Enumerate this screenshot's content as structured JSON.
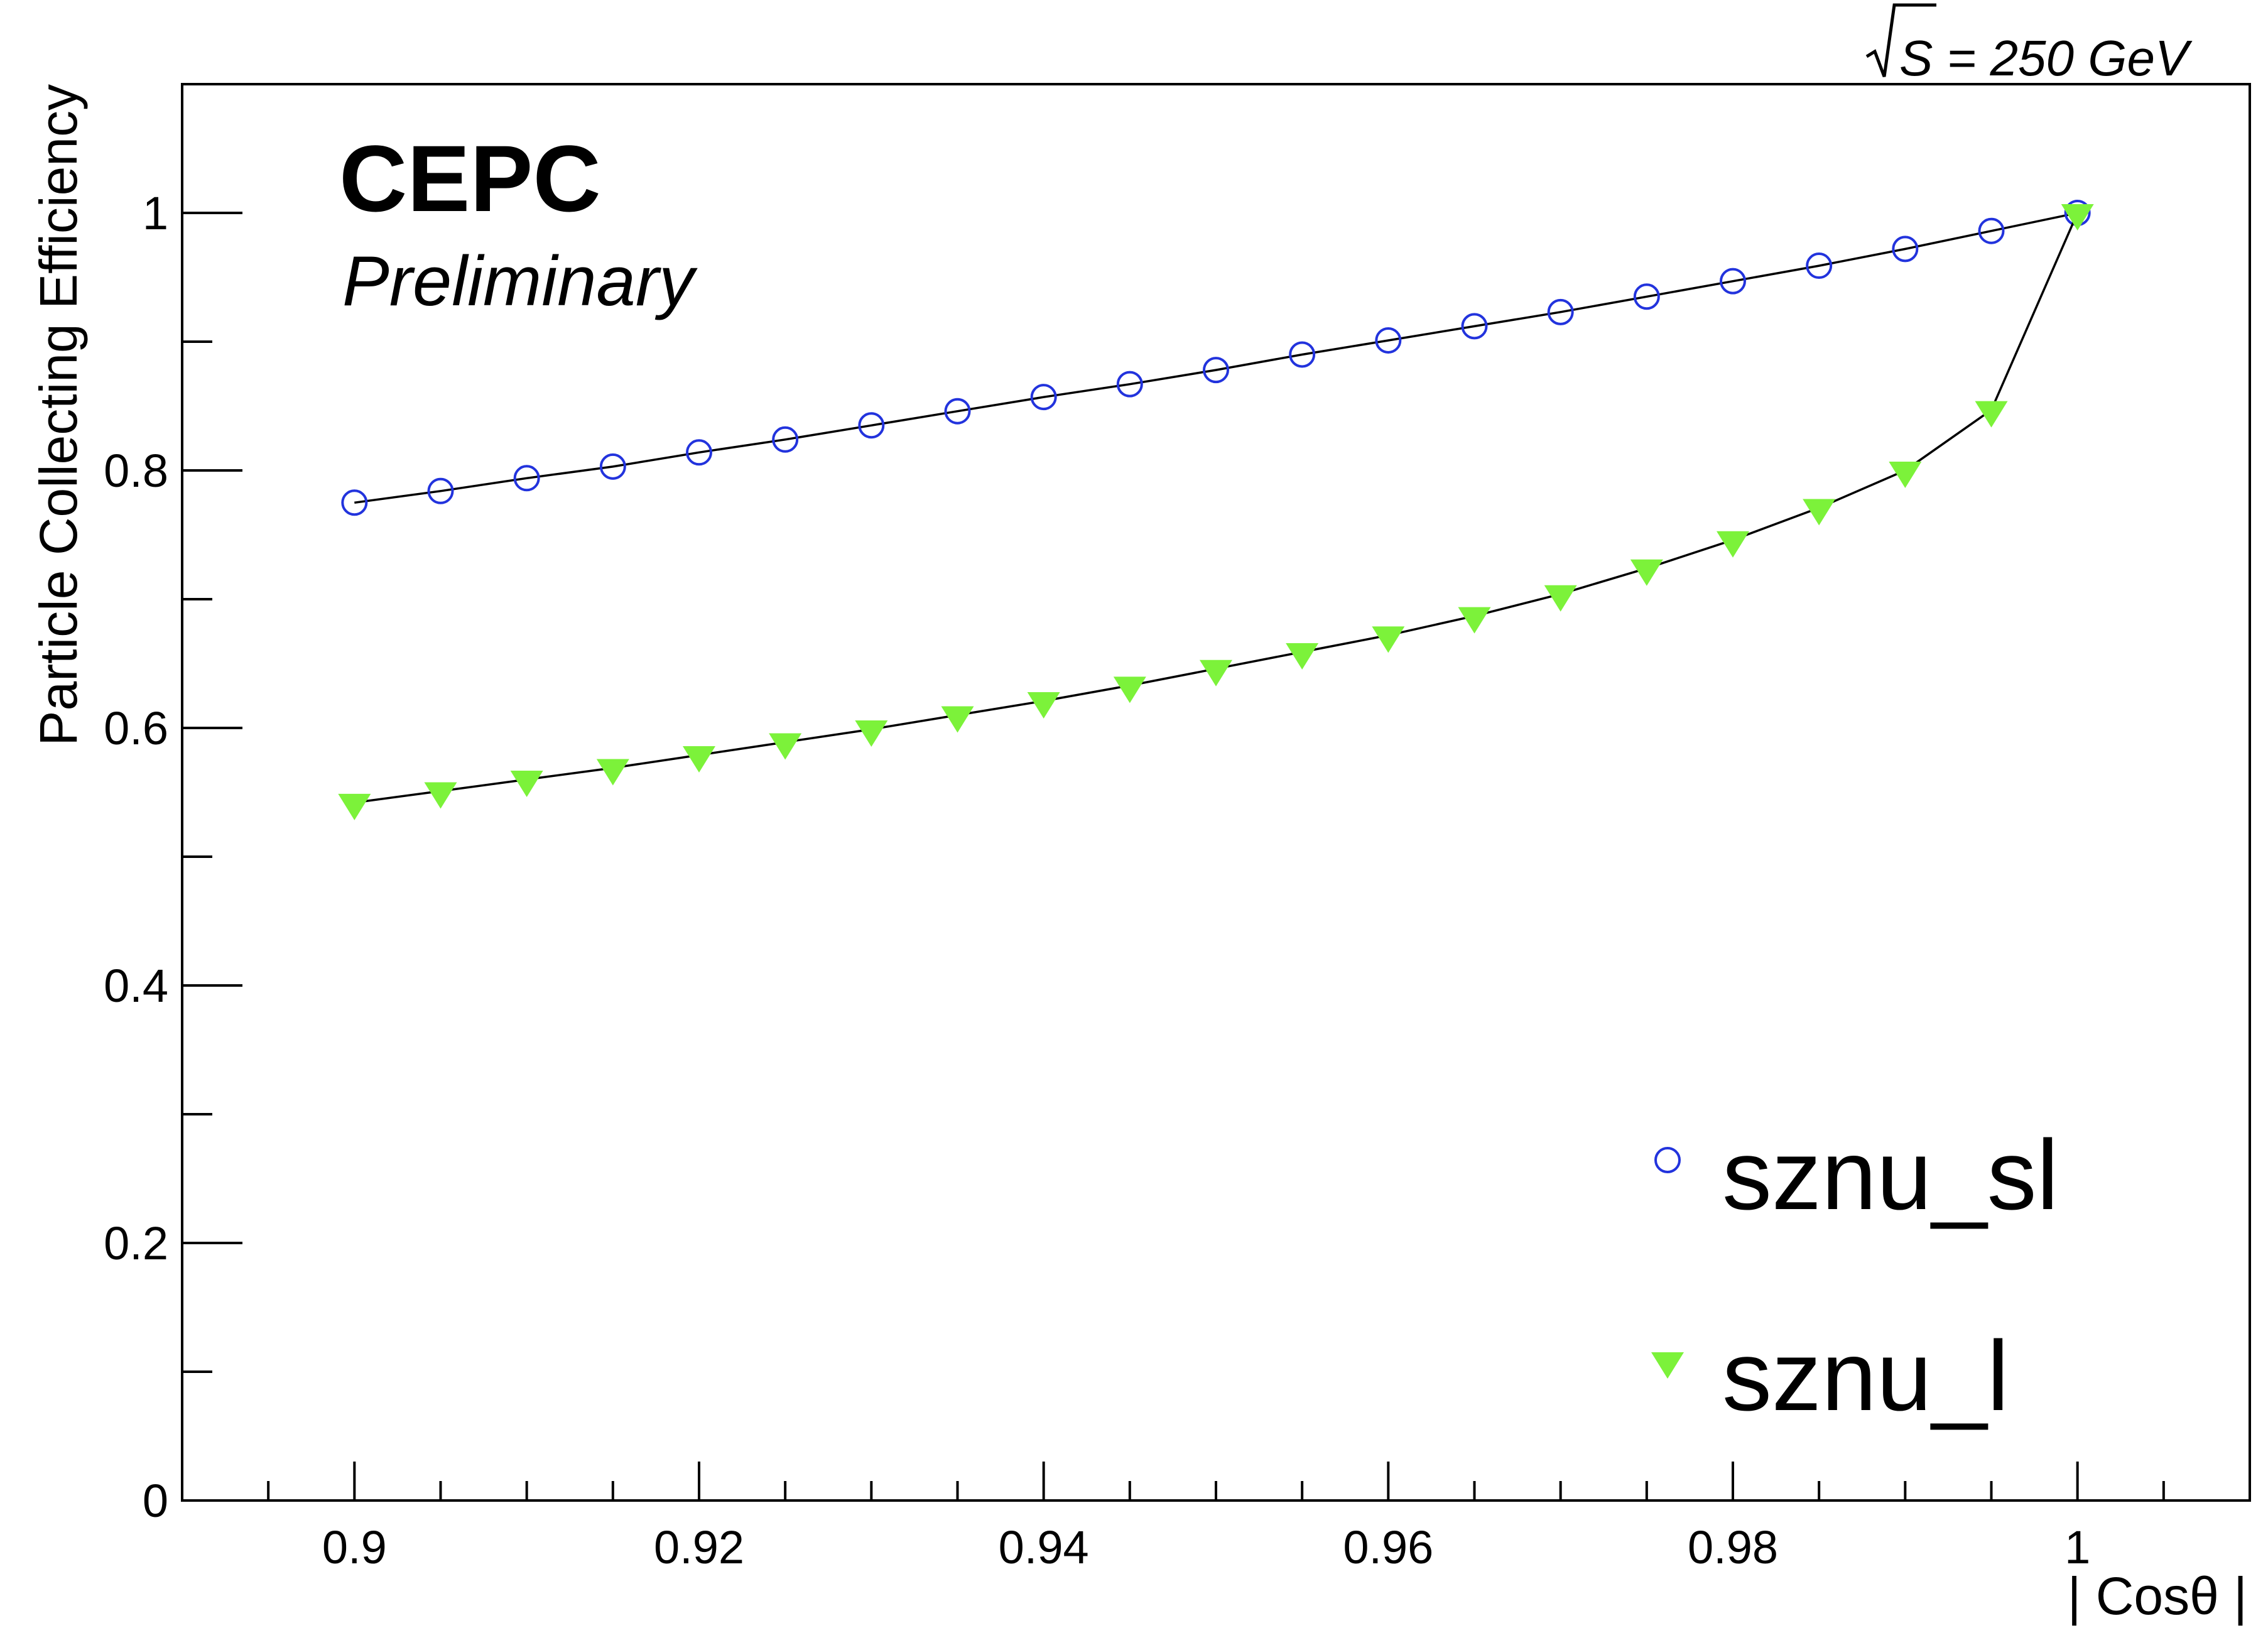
{
  "chart_data": {
    "type": "line",
    "brand": "CEPC",
    "subtitle": "Preliminary",
    "energy_label": "S = 250 GeV",
    "xlabel": "| Cosθ |",
    "ylabel": "Particle Collecting Efficiency",
    "xlim": [
      0.89,
      1.01
    ],
    "ylim": [
      0,
      1.1
    ],
    "x_ticks": [
      {
        "value": 0.9,
        "label": "0.9"
      },
      {
        "value": 0.92,
        "label": "0.92"
      },
      {
        "value": 0.94,
        "label": "0.94"
      },
      {
        "value": 0.96,
        "label": "0.96"
      },
      {
        "value": 0.98,
        "label": "0.98"
      },
      {
        "value": 1.0,
        "label": "1"
      }
    ],
    "y_ticks": [
      {
        "value": 0,
        "label": "0"
      },
      {
        "value": 0.2,
        "label": "0.2"
      },
      {
        "value": 0.4,
        "label": "0.4"
      },
      {
        "value": 0.6,
        "label": "0.6"
      },
      {
        "value": 0.8,
        "label": "0.8"
      },
      {
        "value": 1.0,
        "label": "1"
      }
    ],
    "legend_position": "bottom-right",
    "grid": false,
    "x": [
      0.9,
      0.905,
      0.91,
      0.915,
      0.92,
      0.925,
      0.93,
      0.935,
      0.94,
      0.945,
      0.95,
      0.955,
      0.96,
      0.965,
      0.97,
      0.975,
      0.98,
      0.985,
      0.99,
      0.995,
      1.0
    ],
    "series": [
      {
        "name": "sznu_sl",
        "marker": "open-circle",
        "color": "#2233dd",
        "values": [
          0.775,
          0.784,
          0.794,
          0.803,
          0.814,
          0.824,
          0.835,
          0.846,
          0.857,
          0.867,
          0.878,
          0.89,
          0.901,
          0.912,
          0.923,
          0.935,
          0.947,
          0.959,
          0.972,
          0.986,
          1.0
        ]
      },
      {
        "name": "sznu_l",
        "marker": "filled-down-triangle",
        "color": "#7cf23a",
        "values": [
          0.542,
          0.551,
          0.56,
          0.569,
          0.579,
          0.589,
          0.599,
          0.61,
          0.621,
          0.633,
          0.646,
          0.659,
          0.672,
          0.687,
          0.704,
          0.724,
          0.746,
          0.771,
          0.8,
          0.847,
          1.0
        ]
      }
    ]
  }
}
